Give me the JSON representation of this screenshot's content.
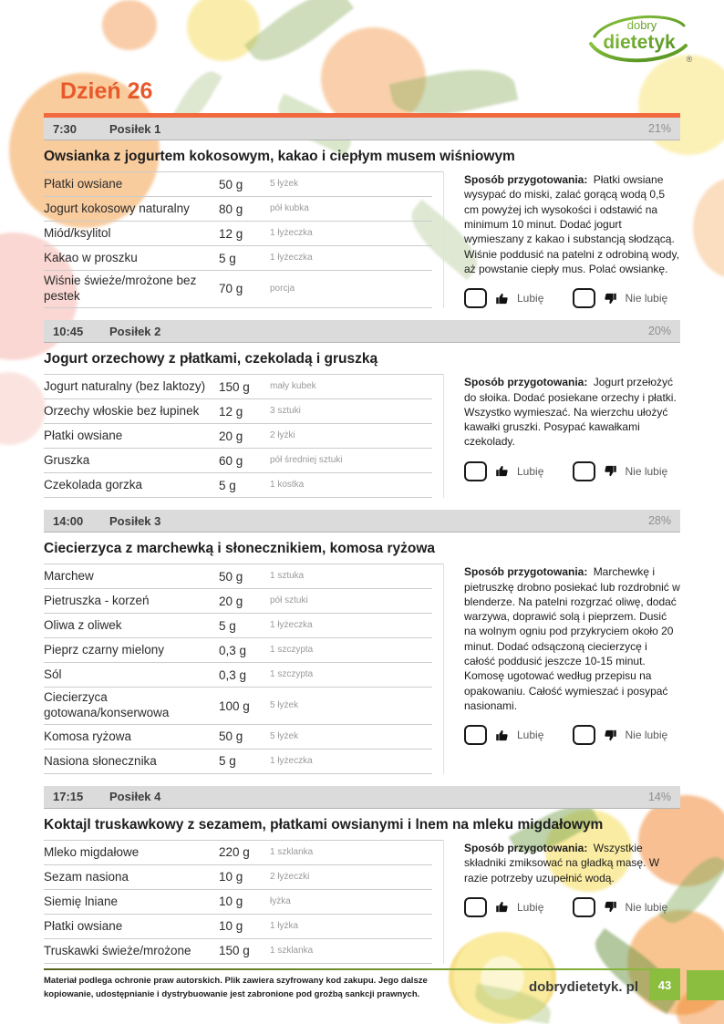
{
  "page": {
    "day_title": "Dzień 26",
    "logo": {
      "top": "dobry",
      "name": "dietetyk",
      "reg": "®"
    },
    "prep_label": "Sposób przygotowania:",
    "like_label": "Lubię",
    "dislike_label": "Nie lubię",
    "footer": {
      "disclaimer": "Materiał podlega ochronie praw autorskich. Plik zawiera szyfrowany kod zakupu. Jego dalsze kopiowanie, udostępnianie i dystrybuowanie jest zabronione pod groźbą sankcji prawnych.",
      "site": "dobrydietetyk. pl",
      "page_number": "43"
    }
  },
  "meals": [
    {
      "time": "7:30",
      "name": "Posiłek 1",
      "percent": "21%",
      "title": "Owsianka z jogurtem kokosowym, kakao i ciepłym musem wiśniowym",
      "ingredients": [
        {
          "name": "Płatki owsiane",
          "amount": "50 g",
          "measure": "5 łyżek"
        },
        {
          "name": "Jogurt kokosowy naturalny",
          "amount": "80 g",
          "measure": "pół kubka"
        },
        {
          "name": "Miód/ksylitol",
          "amount": "12 g",
          "measure": "1 łyżeczka"
        },
        {
          "name": "Kakao w proszku",
          "amount": "5 g",
          "measure": "1 łyżeczka"
        },
        {
          "name": "Wiśnie świeże/mrożone bez pestek",
          "amount": "70 g",
          "measure": "porcja"
        }
      ],
      "preparation": "Płatki owsiane wysypać do miski, zalać gorącą wodą 0,5 cm powyżej ich wysokości i odstawić na minimum 10 minut. Dodać jogurt wymieszany z kakao i substancją słodzącą. Wiśnie poddusić na patelni z odrobiną wody, aż powstanie ciepły mus. Polać owsiankę."
    },
    {
      "time": "10:45",
      "name": "Posiłek 2",
      "percent": "20%",
      "title": "Jogurt orzechowy z płatkami, czekoladą i gruszką",
      "ingredients": [
        {
          "name": "Jogurt naturalny (bez laktozy)",
          "amount": "150 g",
          "measure": "mały kubek"
        },
        {
          "name": "Orzechy włoskie bez łupinek",
          "amount": "12 g",
          "measure": "3 sztuki"
        },
        {
          "name": "Płatki owsiane",
          "amount": "20 g",
          "measure": "2 łyżki"
        },
        {
          "name": "Gruszka",
          "amount": "60 g",
          "measure": "pół średniej sztuki"
        },
        {
          "name": "Czekolada gorzka",
          "amount": "5 g",
          "measure": "1 kostka"
        }
      ],
      "preparation": "Jogurt przełożyć do słoika. Dodać posiekane orzechy i płatki. Wszystko wymieszać. Na wierzchu ułożyć kawałki gruszki. Posypać kawałkami czekolady."
    },
    {
      "time": "14:00",
      "name": "Posiłek 3",
      "percent": "28%",
      "title": "Ciecierzyca z marchewką i słonecznikiem, komosa ryżowa",
      "ingredients": [
        {
          "name": "Marchew",
          "amount": "50 g",
          "measure": "1 sztuka"
        },
        {
          "name": "Pietruszka - korzeń",
          "amount": "20 g",
          "measure": "pół sztuki"
        },
        {
          "name": "Oliwa z oliwek",
          "amount": "5 g",
          "measure": "1 łyżeczka"
        },
        {
          "name": "Pieprz czarny mielony",
          "amount": "0,3 g",
          "measure": "1 szczypta"
        },
        {
          "name": "Sól",
          "amount": "0,3 g",
          "measure": "1 szczypta"
        },
        {
          "name": "Ciecierzyca gotowana/konserwowa",
          "amount": "100 g",
          "measure": "5 łyżek"
        },
        {
          "name": "Komosa ryżowa",
          "amount": "50 g",
          "measure": "5 łyżek"
        },
        {
          "name": "Nasiona słonecznika",
          "amount": "5 g",
          "measure": "1 łyżeczka"
        }
      ],
      "preparation": "Marchewkę i pietruszkę drobno posiekać lub rozdrobnić w blenderze. Na patelni rozgrzać oliwę, dodać warzywa, doprawić solą i pieprzem. Dusić na wolnym ogniu pod przykryciem około 20 minut. Dodać odsączoną ciecierzycę i całość poddusić jeszcze 10-15 minut. Komosę ugotować według przepisu na opakowaniu. Całość wymieszać i posypać nasionami."
    },
    {
      "time": "17:15",
      "name": "Posiłek 4",
      "percent": "14%",
      "title": "Koktajl truskawkowy z sezamem, płatkami owsianymi i lnem na mleku migdałowym",
      "ingredients": [
        {
          "name": "Mleko migdałowe",
          "amount": "220 g",
          "measure": "1 szklanka"
        },
        {
          "name": "Sezam nasiona",
          "amount": "10 g",
          "measure": "2 łyżeczki"
        },
        {
          "name": "Siemię lniane",
          "amount": "10 g",
          "measure": "łyżka"
        },
        {
          "name": "Płatki owsiane",
          "amount": "10 g",
          "measure": "1 łyżka"
        },
        {
          "name": "Truskawki świeże/mrożone",
          "amount": "150 g",
          "measure": "1 szklanka"
        }
      ],
      "preparation": "Wszystkie składniki zmiksować na gładką masę. W razie potrzeby uzupełnić wodą."
    }
  ]
}
